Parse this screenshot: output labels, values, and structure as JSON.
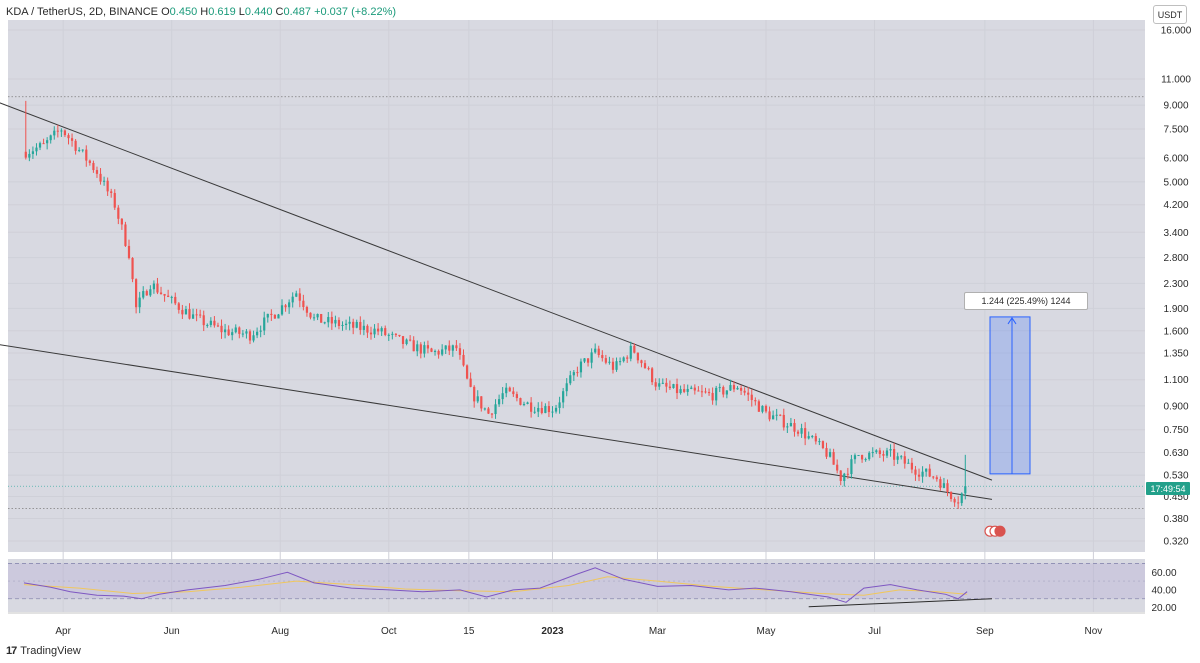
{
  "header": {
    "symbol": "KDA / TetherUS, 2D, BINANCE",
    "o_label": "O",
    "o_value": "0.450",
    "h_label": "H",
    "h_value": "0.619",
    "l_label": "L",
    "l_value": "0.440",
    "c_label": "C",
    "c_value": "0.487",
    "change": "+0.037 (+8.22%)"
  },
  "currency_label": "USDT",
  "brand_label": "TradingView",
  "measure_label": "1.244 (225.49%) 1244",
  "price_badge": "17:49:54",
  "colors": {
    "up": "#26a69a",
    "down": "#ef5350",
    "rsi": "#7e57c2",
    "rsi_ma": "#f0c75e",
    "measure": "#2962ff"
  },
  "chart_data": [
    {
      "type": "candlestick",
      "title": "",
      "y_scale": "log",
      "y_ticks": [
        "16.000",
        "11.000",
        "9.000",
        "7.500",
        "6.000",
        "5.000",
        "4.200",
        "3.400",
        "2.800",
        "2.300",
        "1.900",
        "1.600",
        "1.350",
        "1.100",
        "0.900",
        "0.750",
        "0.630",
        "0.530",
        "0.450",
        "0.380",
        "0.320"
      ],
      "x_ticks": [
        "Apr",
        "Jun",
        "Aug",
        "Oct",
        "15",
        "2023",
        "Mar",
        "May",
        "Jul",
        "Sep",
        "Nov"
      ],
      "x_range": [
        "2022-03-01",
        "2023-11-30"
      ],
      "close_path": [
        [
          "2022-03-11",
          6.3
        ],
        [
          "2022-03-21",
          6.6
        ],
        [
          "2022-03-31",
          7.5
        ],
        [
          "2022-04-08",
          6.6
        ],
        [
          "2022-04-20",
          5.4
        ],
        [
          "2022-04-30",
          4.2
        ],
        [
          "2022-05-08",
          2.9
        ],
        [
          "2022-05-12",
          1.9
        ],
        [
          "2022-05-20",
          2.3
        ],
        [
          "2022-06-01",
          2.0
        ],
        [
          "2022-06-15",
          1.75
        ],
        [
          "2022-06-30",
          1.6
        ],
        [
          "2022-07-15",
          1.55
        ],
        [
          "2022-08-01",
          1.9
        ],
        [
          "2022-08-10",
          2.15
        ],
        [
          "2022-08-20",
          1.75
        ],
        [
          "2022-09-10",
          1.65
        ],
        [
          "2022-09-25",
          1.6
        ],
        [
          "2022-10-10",
          1.45
        ],
        [
          "2022-10-25",
          1.35
        ],
        [
          "2022-11-08",
          1.4
        ],
        [
          "2022-11-16",
          1.0
        ],
        [
          "2022-11-26",
          0.85
        ],
        [
          "2022-12-05",
          1.0
        ],
        [
          "2022-12-20",
          0.9
        ],
        [
          "2023-01-02",
          0.88
        ],
        [
          "2023-01-15",
          1.2
        ],
        [
          "2023-01-25",
          1.35
        ],
        [
          "2023-02-05",
          1.2
        ],
        [
          "2023-02-15",
          1.4
        ],
        [
          "2023-03-01",
          1.05
        ],
        [
          "2023-03-15",
          1.0
        ],
        [
          "2023-04-01",
          0.98
        ],
        [
          "2023-04-15",
          1.05
        ],
        [
          "2023-05-01",
          0.85
        ],
        [
          "2023-05-20",
          0.75
        ],
        [
          "2023-06-05",
          0.62
        ],
        [
          "2023-06-12",
          0.52
        ],
        [
          "2023-06-22",
          0.62
        ],
        [
          "2023-07-10",
          0.62
        ],
        [
          "2023-07-25",
          0.55
        ],
        [
          "2023-08-05",
          0.52
        ],
        [
          "2023-08-12",
          0.46
        ],
        [
          "2023-08-17",
          0.44
        ],
        [
          "2023-08-22",
          0.487
        ]
      ],
      "ath_high": 9.3,
      "dotted_levels": [
        9.6,
        0.41
      ],
      "trendlines": [
        {
          "name": "",
          "from": [
            "2022-01-20",
            11.0
          ],
          "to": [
            "2023-09-05",
            0.51
          ]
        },
        {
          "name": "",
          "from": [
            "2022-01-20",
            1.55
          ],
          "to": [
            "2023-09-05",
            0.44
          ]
        }
      ],
      "measure": {
        "from_price": 0.535,
        "to_price": 1.779,
        "change": 1.244,
        "percent": 225.49
      },
      "last_price": 0.487
    },
    {
      "type": "line",
      "name": "",
      "y_ticks": [
        "60.00",
        "40.00",
        "20.00"
      ],
      "levels": [
        70,
        30
      ],
      "ylim": [
        15,
        75
      ],
      "rsi_points": [
        [
          "2022-03-10",
          48
        ],
        [
          "2022-03-25",
          43
        ],
        [
          "2022-04-05",
          38
        ],
        [
          "2022-04-20",
          34
        ],
        [
          "2022-05-05",
          33
        ],
        [
          "2022-05-15",
          30
        ],
        [
          "2022-05-25",
          35
        ],
        [
          "2022-06-10",
          40
        ],
        [
          "2022-07-01",
          45
        ],
        [
          "2022-07-20",
          52
        ],
        [
          "2022-08-05",
          60
        ],
        [
          "2022-08-20",
          48
        ],
        [
          "2022-09-10",
          42
        ],
        [
          "2022-10-01",
          40
        ],
        [
          "2022-10-20",
          38
        ],
        [
          "2022-11-10",
          40
        ],
        [
          "2022-11-25",
          32
        ],
        [
          "2022-12-10",
          40
        ],
        [
          "2022-12-25",
          42
        ],
        [
          "2023-01-15",
          58
        ],
        [
          "2023-01-25",
          65
        ],
        [
          "2023-02-10",
          52
        ],
        [
          "2023-03-01",
          44
        ],
        [
          "2023-03-20",
          45
        ],
        [
          "2023-04-10",
          40
        ],
        [
          "2023-04-25",
          42
        ],
        [
          "2023-05-15",
          38
        ],
        [
          "2023-06-05",
          32
        ],
        [
          "2023-06-15",
          26
        ],
        [
          "2023-06-25",
          42
        ],
        [
          "2023-07-10",
          46
        ],
        [
          "2023-07-25",
          40
        ],
        [
          "2023-08-10",
          35
        ],
        [
          "2023-08-17",
          30
        ],
        [
          "2023-08-22",
          38
        ]
      ],
      "rsi_ma_points": [
        [
          "2022-03-10",
          46
        ],
        [
          "2022-04-10",
          42
        ],
        [
          "2022-05-10",
          36
        ],
        [
          "2022-06-10",
          38
        ],
        [
          "2022-07-10",
          43
        ],
        [
          "2022-08-10",
          50
        ],
        [
          "2022-09-10",
          46
        ],
        [
          "2022-10-10",
          41
        ],
        [
          "2022-11-10",
          39
        ],
        [
          "2022-12-10",
          38
        ],
        [
          "2023-01-10",
          45
        ],
        [
          "2023-02-01",
          55
        ],
        [
          "2023-03-01",
          50
        ],
        [
          "2023-04-01",
          44
        ],
        [
          "2023-05-01",
          40
        ],
        [
          "2023-06-01",
          36
        ],
        [
          "2023-06-25",
          34
        ],
        [
          "2023-07-15",
          40
        ],
        [
          "2023-08-05",
          38
        ],
        [
          "2023-08-22",
          35
        ]
      ],
      "divergence_line": {
        "from": [
          "2023-05-25",
          21
        ],
        "to": [
          "2023-09-05",
          30
        ]
      }
    }
  ]
}
